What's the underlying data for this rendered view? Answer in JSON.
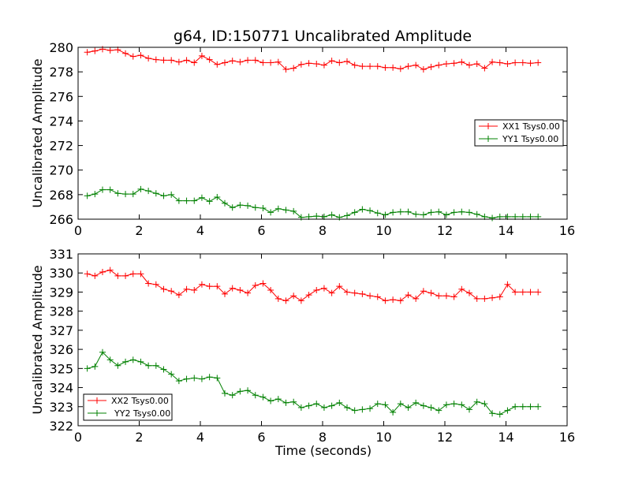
{
  "chart_data": [
    {
      "type": "line",
      "title": "g64, ID:150771 Uncalibrated Amplitude",
      "xlabel": "",
      "ylabel": "Uncalibrated Amplitude",
      "xlim": [
        0,
        16
      ],
      "ylim": [
        266,
        280
      ],
      "xticks": [
        0,
        2,
        4,
        6,
        8,
        10,
        12,
        14,
        16
      ],
      "yticks": [
        266,
        268,
        270,
        272,
        274,
        276,
        278,
        280
      ],
      "legend_position": "center-right",
      "x": [
        0.3,
        0.55,
        0.8,
        1.05,
        1.3,
        1.55,
        1.8,
        2.05,
        2.3,
        2.55,
        2.8,
        3.05,
        3.3,
        3.55,
        3.8,
        4.05,
        4.3,
        4.55,
        4.8,
        5.05,
        5.3,
        5.55,
        5.8,
        6.05,
        6.3,
        6.55,
        6.8,
        7.05,
        7.3,
        7.55,
        7.8,
        8.05,
        8.3,
        8.55,
        8.8,
        9.05,
        9.3,
        9.55,
        9.8,
        10.05,
        10.3,
        10.55,
        10.8,
        11.05,
        11.3,
        11.55,
        11.8,
        12.05,
        12.3,
        12.55,
        12.8,
        13.05,
        13.3,
        13.55,
        13.8,
        14.05,
        14.3,
        14.55,
        14.8,
        15.05
      ],
      "series": [
        {
          "name": "XX1 Tsys0.00",
          "color": "#ff0000",
          "values": [
            279.6,
            279.7,
            279.85,
            279.75,
            279.8,
            279.5,
            279.25,
            279.35,
            279.1,
            279.0,
            278.95,
            278.95,
            278.8,
            278.95,
            278.75,
            279.3,
            279.0,
            278.6,
            278.75,
            278.9,
            278.8,
            278.95,
            278.95,
            278.75,
            278.75,
            278.8,
            278.2,
            278.3,
            278.6,
            278.7,
            278.65,
            278.55,
            278.9,
            278.75,
            278.85,
            278.55,
            278.45,
            278.45,
            278.45,
            278.35,
            278.35,
            278.25,
            278.45,
            278.55,
            278.2,
            278.4,
            278.55,
            278.65,
            278.7,
            278.8,
            278.55,
            278.65,
            278.3,
            278.8,
            278.75,
            278.65,
            278.75,
            278.75,
            278.7,
            278.75
          ]
        },
        {
          "name": "YY1 Tsys0.00",
          "color": "#008000",
          "values": [
            267.9,
            268.05,
            268.4,
            268.4,
            268.1,
            268.05,
            268.05,
            268.45,
            268.3,
            268.1,
            267.9,
            268.0,
            267.5,
            267.5,
            267.5,
            267.75,
            267.45,
            267.8,
            267.3,
            266.95,
            267.15,
            267.1,
            266.95,
            266.9,
            266.55,
            266.85,
            266.75,
            266.65,
            266.15,
            266.2,
            266.25,
            266.2,
            266.35,
            266.15,
            266.3,
            266.55,
            266.8,
            266.7,
            266.5,
            266.35,
            266.55,
            266.6,
            266.6,
            266.4,
            266.35,
            266.55,
            266.6,
            266.35,
            266.55,
            266.6,
            266.55,
            266.4,
            266.2,
            266.1,
            266.2,
            266.2,
            266.2,
            266.2,
            266.2,
            266.2
          ]
        }
      ]
    },
    {
      "type": "line",
      "title": "",
      "xlabel": "Time (seconds)",
      "ylabel": "Uncalibrated Amplitude",
      "xlim": [
        0,
        16
      ],
      "ylim": [
        322,
        331
      ],
      "xticks": [
        0,
        2,
        4,
        6,
        8,
        10,
        12,
        14,
        16
      ],
      "yticks": [
        322,
        323,
        324,
        325,
        326,
        327,
        328,
        329,
        330,
        331
      ],
      "legend_position": "bottom-left",
      "x": [
        0.3,
        0.55,
        0.8,
        1.05,
        1.3,
        1.55,
        1.8,
        2.05,
        2.3,
        2.55,
        2.8,
        3.05,
        3.3,
        3.55,
        3.8,
        4.05,
        4.3,
        4.55,
        4.8,
        5.05,
        5.3,
        5.55,
        5.8,
        6.05,
        6.3,
        6.55,
        6.8,
        7.05,
        7.3,
        7.55,
        7.8,
        8.05,
        8.3,
        8.55,
        8.8,
        9.05,
        9.3,
        9.55,
        9.8,
        10.05,
        10.3,
        10.55,
        10.8,
        11.05,
        11.3,
        11.55,
        11.8,
        12.05,
        12.3,
        12.55,
        12.8,
        13.05,
        13.3,
        13.55,
        13.8,
        14.05,
        14.3,
        14.55,
        14.8,
        15.05
      ],
      "series": [
        {
          "name": "XX2 Tsys0.00",
          "color": "#ff0000",
          "values": [
            329.95,
            329.85,
            330.05,
            330.15,
            329.85,
            329.85,
            329.95,
            329.95,
            329.45,
            329.4,
            329.15,
            329.05,
            328.85,
            329.15,
            329.1,
            329.4,
            329.3,
            329.3,
            328.9,
            329.2,
            329.1,
            328.95,
            329.35,
            329.45,
            329.1,
            328.65,
            328.55,
            328.8,
            328.55,
            328.85,
            329.1,
            329.2,
            328.95,
            329.3,
            329.0,
            328.95,
            328.9,
            328.8,
            328.75,
            328.55,
            328.6,
            328.55,
            328.85,
            328.65,
            329.05,
            328.95,
            328.8,
            328.8,
            328.75,
            329.15,
            328.95,
            328.65,
            328.65,
            328.7,
            328.75,
            329.4,
            329.0,
            329.0,
            329.0,
            329.0
          ]
        },
        {
          "name": "YY2 Tsys0.00",
          "color": "#008000",
          "values": [
            325.0,
            325.1,
            325.85,
            325.45,
            325.15,
            325.35,
            325.45,
            325.35,
            325.15,
            325.15,
            324.95,
            324.7,
            324.35,
            324.45,
            324.5,
            324.45,
            324.55,
            324.5,
            323.7,
            323.6,
            323.8,
            323.85,
            323.6,
            323.5,
            323.3,
            323.4,
            323.2,
            323.25,
            322.95,
            323.05,
            323.15,
            322.95,
            323.05,
            323.2,
            322.95,
            322.8,
            322.85,
            322.9,
            323.15,
            323.1,
            322.7,
            323.15,
            322.95,
            323.2,
            323.05,
            322.95,
            322.8,
            323.1,
            323.15,
            323.1,
            322.85,
            323.25,
            323.15,
            322.65,
            322.6,
            322.8,
            323.0,
            323.0,
            323.0,
            323.0
          ]
        }
      ]
    }
  ]
}
